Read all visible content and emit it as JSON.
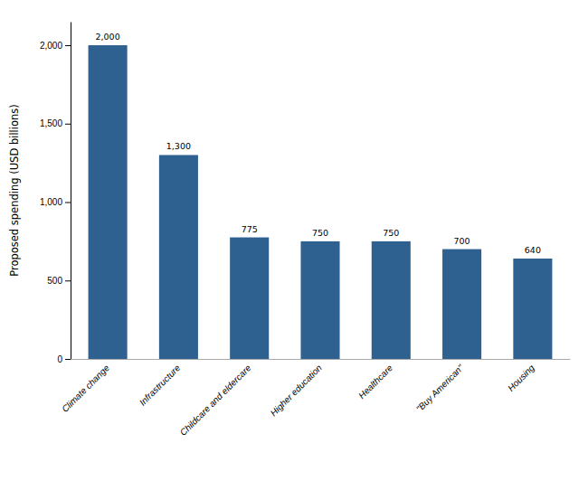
{
  "chart_data": {
    "type": "bar",
    "categories": [
      "Climate change",
      "Infrastructure",
      "Childcare and eldercare",
      "Higher education",
      "Healthcare",
      "\"Buy American\"",
      "Housing"
    ],
    "values": [
      2000,
      1300,
      775,
      750,
      750,
      700,
      640
    ],
    "value_labels": [
      "2,000",
      "1,300",
      "775",
      "750",
      "750",
      "700",
      "640"
    ],
    "data_labels": true,
    "color": "#2E6090",
    "ylabel": "Proposed spending (USD billions)",
    "ylim": [
      0,
      2150
    ],
    "yticks": [
      0,
      500,
      {
        "value": 1000,
        "label": "1,000"
      },
      {
        "value": 1500,
        "label": "1,500"
      },
      {
        "value": 2000,
        "label": "2,000"
      }
    ],
    "grid": false
  }
}
